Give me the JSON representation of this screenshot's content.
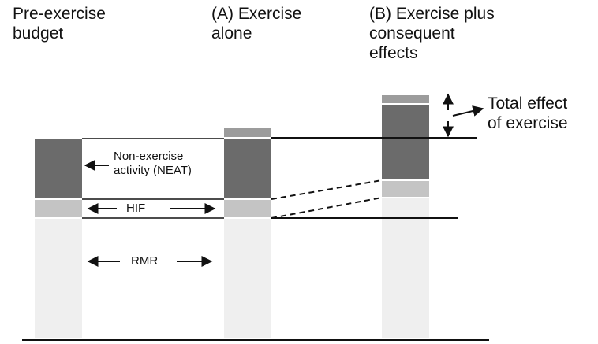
{
  "columns": {
    "pre": "Pre-exercise\nbudget",
    "a": "(A) Exercise\nalone",
    "b": "(B) Exercise plus\nconsequent\neffects"
  },
  "labels": {
    "neat": "Non-exercise\nactivity (NEAT)",
    "hif": "HIF",
    "rmr": "RMR",
    "total": "Total effect\nof exercise"
  },
  "colors": {
    "rmr": "#efefef",
    "hif": "#c4c4c4",
    "neat": "#6b6b6b",
    "exercise": "#9c9c9c",
    "line": "#111111"
  }
}
